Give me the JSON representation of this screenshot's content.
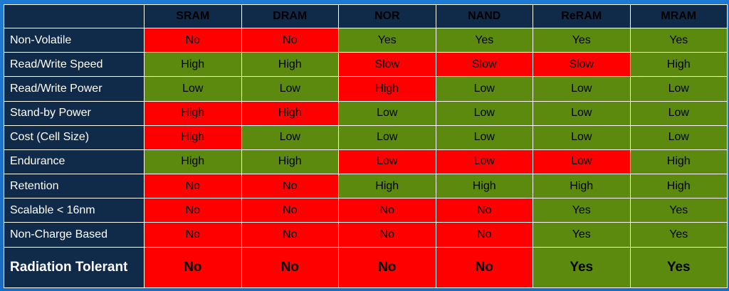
{
  "colors": {
    "good": "#5c8a0e",
    "bad": "#fe0000",
    "header": "#102a4a",
    "frame": "#1b73c9"
  },
  "columns": [
    "SRAM",
    "DRAM",
    "NOR",
    "NAND",
    "ReRAM",
    "MRAM"
  ],
  "rows": [
    {
      "label": "Non-Volatile",
      "cells": [
        {
          "text": "No",
          "status": "bad"
        },
        {
          "text": "No",
          "status": "bad"
        },
        {
          "text": "Yes",
          "status": "good"
        },
        {
          "text": "Yes",
          "status": "good"
        },
        {
          "text": "Yes",
          "status": "good"
        },
        {
          "text": "Yes",
          "status": "good"
        }
      ]
    },
    {
      "label": "Read/Write Speed",
      "cells": [
        {
          "text": "High",
          "status": "good"
        },
        {
          "text": "High",
          "status": "good"
        },
        {
          "text": "Slow",
          "status": "bad"
        },
        {
          "text": "Slow",
          "status": "bad"
        },
        {
          "text": "Slow",
          "status": "bad"
        },
        {
          "text": "High",
          "status": "good"
        }
      ]
    },
    {
      "label": "Read/Write Power",
      "cells": [
        {
          "text": "Low",
          "status": "good"
        },
        {
          "text": "Low",
          "status": "good"
        },
        {
          "text": "High",
          "status": "bad"
        },
        {
          "text": "Low",
          "status": "good"
        },
        {
          "text": "Low",
          "status": "good"
        },
        {
          "text": "Low",
          "status": "good"
        }
      ]
    },
    {
      "label": "Stand-by Power",
      "cells": [
        {
          "text": "High",
          "status": "bad"
        },
        {
          "text": "High",
          "status": "bad"
        },
        {
          "text": "Low",
          "status": "good"
        },
        {
          "text": "Low",
          "status": "good"
        },
        {
          "text": "Low",
          "status": "good"
        },
        {
          "text": "Low",
          "status": "good"
        }
      ]
    },
    {
      "label": "Cost (Cell Size)",
      "cells": [
        {
          "text": "High",
          "status": "bad"
        },
        {
          "text": "Low",
          "status": "good"
        },
        {
          "text": "Low",
          "status": "good"
        },
        {
          "text": "Low",
          "status": "good"
        },
        {
          "text": "Low",
          "status": "good"
        },
        {
          "text": "Low",
          "status": "good"
        }
      ]
    },
    {
      "label": "Endurance",
      "cells": [
        {
          "text": "High",
          "status": "good"
        },
        {
          "text": "High",
          "status": "good"
        },
        {
          "text": "Low",
          "status": "bad"
        },
        {
          "text": "Low",
          "status": "bad"
        },
        {
          "text": "Low",
          "status": "bad"
        },
        {
          "text": "High",
          "status": "good"
        }
      ]
    },
    {
      "label": "Retention",
      "cells": [
        {
          "text": "No",
          "status": "bad"
        },
        {
          "text": "No",
          "status": "bad"
        },
        {
          "text": "High",
          "status": "good"
        },
        {
          "text": "High",
          "status": "good"
        },
        {
          "text": "High",
          "status": "good"
        },
        {
          "text": "High",
          "status": "good"
        }
      ]
    },
    {
      "label": "Scalable < 16nm",
      "cells": [
        {
          "text": "No",
          "status": "bad"
        },
        {
          "text": "No",
          "status": "bad"
        },
        {
          "text": "No",
          "status": "bad"
        },
        {
          "text": "No",
          "status": "bad"
        },
        {
          "text": "Yes",
          "status": "good"
        },
        {
          "text": "Yes",
          "status": "good"
        }
      ]
    },
    {
      "label": "Non-Charge Based",
      "cells": [
        {
          "text": "No",
          "status": "bad"
        },
        {
          "text": "No",
          "status": "bad"
        },
        {
          "text": "No",
          "status": "bad"
        },
        {
          "text": "No",
          "status": "bad"
        },
        {
          "text": "Yes",
          "status": "good"
        },
        {
          "text": "Yes",
          "status": "good"
        }
      ]
    },
    {
      "label": "Radiation Tolerant",
      "cells": [
        {
          "text": "No",
          "status": "bad"
        },
        {
          "text": "No",
          "status": "bad"
        },
        {
          "text": "No",
          "status": "bad"
        },
        {
          "text": "No",
          "status": "bad"
        },
        {
          "text": "Yes",
          "status": "good"
        },
        {
          "text": "Yes",
          "status": "good"
        }
      ]
    }
  ]
}
